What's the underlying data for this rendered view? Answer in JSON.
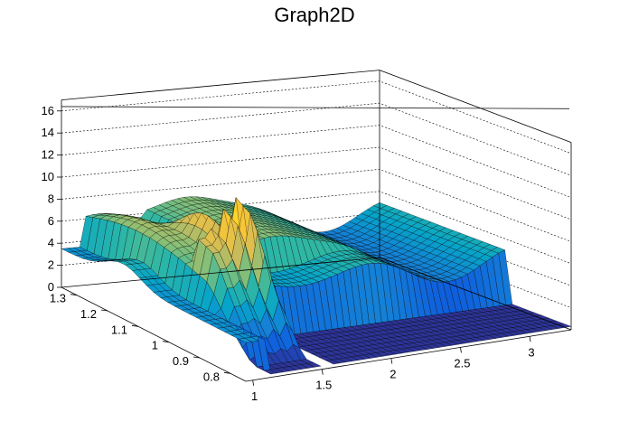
{
  "chart_data": {
    "type": "surface",
    "title": "Graph2D",
    "x_ticks": [
      "1",
      "1.5",
      "2",
      "2.5",
      "3"
    ],
    "x_tick_values": [
      1,
      1.5,
      2,
      2.5,
      3
    ],
    "xlim": [
      0.95,
      3.3
    ],
    "y_ticks": [
      "0.8",
      "0.9",
      "1",
      "1.1",
      "1.2",
      "1.3"
    ],
    "y_tick_values": [
      0.8,
      0.9,
      1.0,
      1.1,
      1.2,
      1.3
    ],
    "ylim": [
      0.75,
      1.35
    ],
    "z_ticks": [
      "0",
      "2",
      "4",
      "6",
      "8",
      "10",
      "12",
      "14",
      "16"
    ],
    "z_tick_values": [
      0,
      2,
      4,
      6,
      8,
      10,
      12,
      14,
      16
    ],
    "zlim": [
      0,
      17
    ],
    "grid": true,
    "colormap": [
      "#352a87",
      "#0f5cdd",
      "#1481d6",
      "#06a4ca",
      "#2eb7a4",
      "#87bf77",
      "#d1bb59",
      "#fec832",
      "#f9fb0e"
    ]
  }
}
